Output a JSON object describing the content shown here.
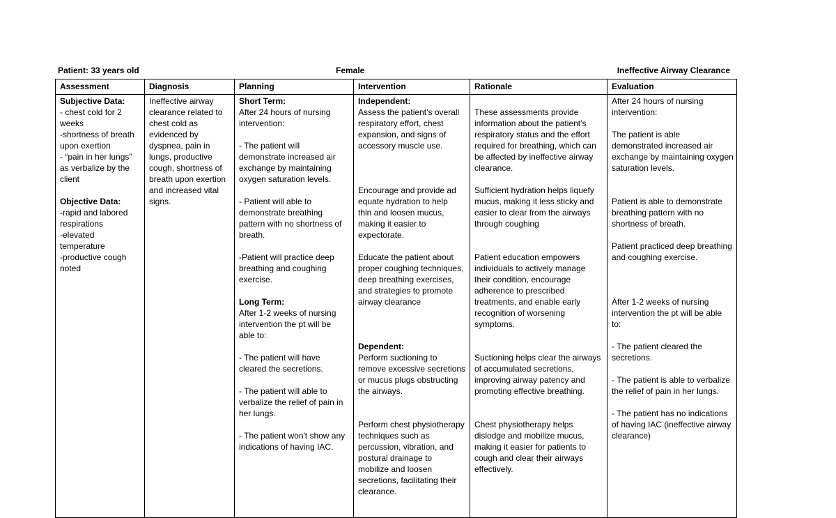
{
  "header": {
    "patient": "Patient: 33 years old",
    "gender": "Female",
    "diagnosis_title": "Ineffective Airway Clearance"
  },
  "columns": [
    {
      "header": "Assessment",
      "lines": [
        {
          "t": "Subjective Data:",
          "b": true
        },
        {
          "t": "- chest cold for 2"
        },
        {
          "t": "weeks"
        },
        {
          "t": "-shortness of breath"
        },
        {
          "t": "upon exertion"
        },
        {
          "t": "- “pain in her lungs”"
        },
        {
          "t": "as verbalize by the"
        },
        {
          "t": "client"
        },
        {
          "t": ""
        },
        {
          "t": "Objective Data:",
          "b": true
        },
        {
          "t": "-rapid and labored"
        },
        {
          "t": "respirations"
        },
        {
          "t": "-elevated"
        },
        {
          "t": "temperature"
        },
        {
          "t": "-productive cough"
        },
        {
          "t": "noted"
        }
      ]
    },
    {
      "header": "Diagnosis",
      "lines": [
        {
          "t": "Ineffective airway"
        },
        {
          "t": "clearance related to"
        },
        {
          "t": "chest cold as"
        },
        {
          "t": "evidenced by"
        },
        {
          "t": "dyspnea, pain in"
        },
        {
          "t": "lungs, productive"
        },
        {
          "t": "cough, shortness of"
        },
        {
          "t": "breath upon exertion"
        },
        {
          "t": "and increased vital"
        },
        {
          "t": "signs."
        }
      ]
    },
    {
      "header": "Planning",
      "lines": [
        {
          "t": "Short Term:",
          "b": true
        },
        {
          "t": "After 24 hours of nursing"
        },
        {
          "t": "intervention:"
        },
        {
          "t": ""
        },
        {
          "t": "-  The patient will"
        },
        {
          "t": "demonstrate increased air"
        },
        {
          "t": "exchange by maintaining"
        },
        {
          "t": "oxygen saturation levels."
        },
        {
          "t": ""
        },
        {
          "t": "- Patient will able to"
        },
        {
          "t": "demonstrate breathing"
        },
        {
          "t": "pattern with no shortness of"
        },
        {
          "t": "breath."
        },
        {
          "t": ""
        },
        {
          "t": "-Patient will practice deep"
        },
        {
          "t": "breathing and coughing"
        },
        {
          "t": "exercise."
        },
        {
          "t": ""
        },
        {
          "t": "Long Term:",
          "b": true
        },
        {
          "t": "After 1-2 weeks of nursing"
        },
        {
          "t": "intervention the pt will be"
        },
        {
          "t": "able to:"
        },
        {
          "t": ""
        },
        {
          "t": "- The patient will have"
        },
        {
          "t": "cleared the secretions."
        },
        {
          "t": ""
        },
        {
          "t": "- The patient will able to"
        },
        {
          "t": "verbalize the relief of pain in"
        },
        {
          "t": "her lungs."
        },
        {
          "t": ""
        },
        {
          "t": "-  The patient won't show any"
        },
        {
          "t": "indications of having IAC."
        }
      ]
    },
    {
      "header": "Intervention",
      "lines": [
        {
          "t": "Independent:",
          "b": true
        },
        {
          "t": "Assess the patient’s overall"
        },
        {
          "t": "respiratory effort, chest"
        },
        {
          "t": "expansion, and signs of"
        },
        {
          "t": "accessory muscle use."
        },
        {
          "t": ""
        },
        {
          "t": ""
        },
        {
          "t": ""
        },
        {
          "t": "Encourage and provide ad"
        },
        {
          "t": "equate hydration to help"
        },
        {
          "t": "thin and loosen mucus,"
        },
        {
          "t": "making it easier to"
        },
        {
          "t": "expectorate."
        },
        {
          "t": ""
        },
        {
          "t": "Educate the patient about"
        },
        {
          "t": "proper coughing techniques,"
        },
        {
          "t": "deep breathing exercises,"
        },
        {
          "t": "and strategies to promote"
        },
        {
          "t": "airway clearance"
        },
        {
          "t": ""
        },
        {
          "t": ""
        },
        {
          "t": ""
        },
        {
          "t": "Dependent:",
          "b": true
        },
        {
          "t": "Perform suctioning to"
        },
        {
          "t": "remove excessive secretions"
        },
        {
          "t": "or mucus plugs obstructing"
        },
        {
          "t": "the airways."
        },
        {
          "t": ""
        },
        {
          "t": ""
        },
        {
          "t": "Perform chest physiotherapy"
        },
        {
          "t": "techniques such as"
        },
        {
          "t": "percussion, vibration, and"
        },
        {
          "t": "postural drainage to"
        },
        {
          "t": "mobilize and loosen"
        },
        {
          "t": "secretions, facilitating their"
        },
        {
          "t": "clearance."
        }
      ]
    },
    {
      "header": "Rationale",
      "lines": [
        {
          "t": ""
        },
        {
          "t": "These assessments provide"
        },
        {
          "t": "information about the patient’s"
        },
        {
          "t": "respiratory status and the effort"
        },
        {
          "t": "required for breathing, which can"
        },
        {
          "t": "be affected by ineffective airway"
        },
        {
          "t": "clearance."
        },
        {
          "t": ""
        },
        {
          "t": "Sufficient hydration helps liquefy"
        },
        {
          "t": "mucus, making it less sticky and"
        },
        {
          "t": "easier to clear from the airways"
        },
        {
          "t": "through coughing"
        },
        {
          "t": ""
        },
        {
          "t": ""
        },
        {
          "t": "Patient education empowers"
        },
        {
          "t": "individuals to actively manage"
        },
        {
          "t": "their condition, encourage"
        },
        {
          "t": "adherence to prescribed"
        },
        {
          "t": "treatments, and enable early"
        },
        {
          "t": "recognition of worsening"
        },
        {
          "t": "symptoms."
        },
        {
          "t": ""
        },
        {
          "t": ""
        },
        {
          "t": "Suctioning helps clear the airways"
        },
        {
          "t": "of accumulated secretions,"
        },
        {
          "t": "improving airway patency and"
        },
        {
          "t": "promoting effective breathing."
        },
        {
          "t": ""
        },
        {
          "t": ""
        },
        {
          "t": "Chest physiotherapy helps"
        },
        {
          "t": "dislodge and mobilize mucus,"
        },
        {
          "t": "making it easier for patients to"
        },
        {
          "t": "cough and clear their airways"
        },
        {
          "t": "effectively."
        }
      ]
    },
    {
      "header": "Evaluation",
      "lines": [
        {
          "t": "After 24 hours of nursing"
        },
        {
          "t": "intervention:"
        },
        {
          "t": ""
        },
        {
          "t": "The patient is able"
        },
        {
          "t": "demonstrated increased air"
        },
        {
          "t": "exchange by maintaining oxygen"
        },
        {
          "t": "saturation levels."
        },
        {
          "t": ""
        },
        {
          "t": ""
        },
        {
          "t": "Patient is able to demonstrate"
        },
        {
          "t": "breathing pattern with no"
        },
        {
          "t": "shortness of breath."
        },
        {
          "t": ""
        },
        {
          "t": "Patient practiced deep breathing"
        },
        {
          "t": "and coughing exercise."
        },
        {
          "t": ""
        },
        {
          "t": ""
        },
        {
          "t": ""
        },
        {
          "t": "After 1-2 weeks of nursing"
        },
        {
          "t": "intervention the pt will be able"
        },
        {
          "t": "to:"
        },
        {
          "t": ""
        },
        {
          "t": "- The patient cleared the"
        },
        {
          "t": "secretions."
        },
        {
          "t": ""
        },
        {
          "t": "- The patient is able to verbalize"
        },
        {
          "t": "the relief of pain in her lungs."
        },
        {
          "t": ""
        },
        {
          "t": "-  The patient has no indications"
        },
        {
          "t": "of having IAC (ineffective airway"
        },
        {
          "t": "clearance)"
        }
      ]
    }
  ]
}
